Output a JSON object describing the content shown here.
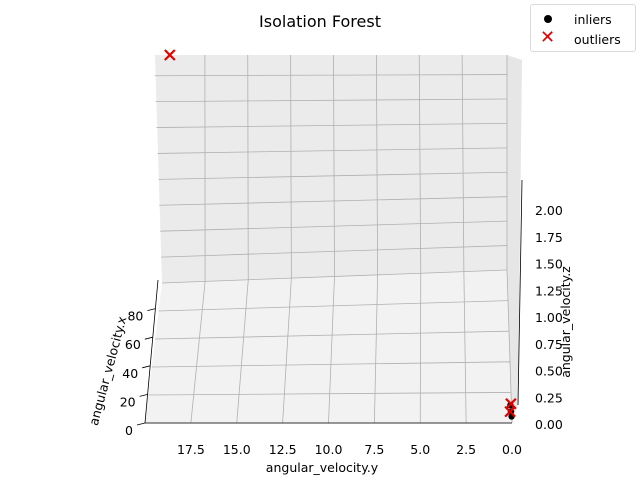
{
  "chart_data": {
    "type": "scatter",
    "title": "Isolation Forest",
    "legend": {
      "placement": "top-right",
      "entries": [
        {
          "label": "inliers",
          "marker": "dot",
          "color": "#000000"
        },
        {
          "label": "outliers",
          "marker": "x",
          "color": "#e00000"
        }
      ]
    },
    "axes": {
      "x": {
        "label": "angular_velocity.x",
        "ticks": [
          "0",
          "20",
          "40",
          "60",
          "80"
        ],
        "range": [
          0,
          100
        ]
      },
      "y": {
        "label": "angular_velocity.y",
        "ticks": [
          "17.5",
          "15.0",
          "12.5",
          "10.0",
          "7.5",
          "5.0",
          "2.5",
          "0.0"
        ],
        "range": [
          0,
          20
        ]
      },
      "z": {
        "label": "angular_velocity.z",
        "ticks": [
          "0.00",
          "0.25",
          "0.50",
          "0.75",
          "1.00",
          "1.25",
          "1.50",
          "1.75",
          "2.00"
        ],
        "range": [
          0,
          2.2
        ]
      }
    },
    "grid": true,
    "series": [
      {
        "name": "inliers",
        "color": "#000000",
        "points": [
          {
            "x": 2,
            "y": 0.05,
            "z": 0.05
          },
          {
            "x": 3,
            "y": 0.08,
            "z": 0.08
          },
          {
            "x": 1,
            "y": 0.02,
            "z": 0.03
          }
        ]
      },
      {
        "name": "outliers",
        "color": "#e00000",
        "points": [
          {
            "x": 2,
            "y": 0.1,
            "z": 0.05
          },
          {
            "x": 4,
            "y": 0.05,
            "z": 0.08
          },
          {
            "x": 95,
            "y": 19.5,
            "z": 2.2
          }
        ]
      }
    ]
  }
}
